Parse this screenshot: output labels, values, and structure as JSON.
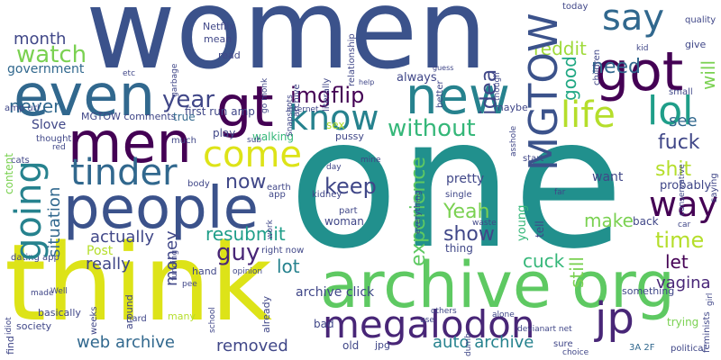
{
  "words": [
    {
      "text": "women",
      "color": "#3b528b"
    },
    {
      "text": "one",
      "color": "#21908d"
    },
    {
      "text": "think",
      "color": "#dde318"
    },
    {
      "text": "archive org",
      "color": "#5ec962"
    },
    {
      "text": "got",
      "color": "#440154"
    },
    {
      "text": "even",
      "color": "#31688e"
    },
    {
      "text": "new",
      "color": "#26828e"
    },
    {
      "text": "men",
      "color": "#440154"
    },
    {
      "text": "people",
      "color": "#3b528b"
    },
    {
      "text": "gt",
      "color": "#440154"
    },
    {
      "text": "megalodon",
      "color": "#482677"
    },
    {
      "text": "jp",
      "color": "#482677"
    },
    {
      "text": "tinder",
      "color": "#31688e"
    },
    {
      "text": "know",
      "color": "#26828e"
    },
    {
      "text": "lol",
      "color": "#1f9e89"
    },
    {
      "text": "life",
      "color": "#b5de2b"
    },
    {
      "text": "say",
      "color": "#31688e"
    },
    {
      "text": "MGTOW",
      "color": "#3b528b"
    },
    {
      "text": "going",
      "color": "#26828e"
    },
    {
      "text": "come",
      "color": "#dde318"
    },
    {
      "text": "way",
      "color": "#440154"
    },
    {
      "text": "fuck",
      "color": "#404788"
    },
    {
      "text": "shit",
      "color": "#b5de2b"
    },
    {
      "text": "time",
      "color": "#b5de2b"
    },
    {
      "text": "watch",
      "color": "#7ad151"
    },
    {
      "text": "imgflip",
      "color": "#440154"
    },
    {
      "text": "idea",
      "color": "#404788"
    },
    {
      "text": "without",
      "color": "#35b779"
    },
    {
      "text": "experience",
      "color": "#5ec962"
    },
    {
      "text": "keep",
      "color": "#404788"
    },
    {
      "text": "Yeah",
      "color": "#7ad151"
    },
    {
      "text": "show",
      "color": "#404788"
    },
    {
      "text": "guy",
      "color": "#482677"
    },
    {
      "text": "resubmit",
      "color": "#1f9e89"
    },
    {
      "text": "now",
      "color": "#404788"
    },
    {
      "text": "year",
      "color": "#404788"
    },
    {
      "text": "need",
      "color": "#31688e"
    },
    {
      "text": "good",
      "color": "#22a884"
    },
    {
      "text": "reddit",
      "color": "#9fda3a"
    },
    {
      "text": "never",
      "color": "#31688e"
    },
    {
      "text": "month",
      "color": "#404788"
    },
    {
      "text": "web archive",
      "color": "#31688e"
    },
    {
      "text": "auto archive",
      "color": "#26828e"
    },
    {
      "text": "removed",
      "color": "#404788"
    },
    {
      "text": "actually",
      "color": "#404788"
    },
    {
      "text": "really",
      "color": "#404788"
    },
    {
      "text": "lot",
      "color": "#26828e"
    },
    {
      "text": "cuck",
      "color": "#35b779"
    },
    {
      "text": "make",
      "color": "#7ad151"
    },
    {
      "text": "let",
      "color": "#440154"
    },
    {
      "text": "vagina",
      "color": "#482677"
    },
    {
      "text": "situation",
      "color": "#31688e"
    },
    {
      "text": "money",
      "color": "#404788"
    },
    {
      "text": "still",
      "color": "#7ad151"
    },
    {
      "text": "will",
      "color": "#7ad151"
    },
    {
      "text": "see",
      "color": "#31688e"
    },
    {
      "text": "probably",
      "color": "#404788"
    },
    {
      "text": "archive click",
      "color": "#404788"
    },
    {
      "text": "pretty",
      "color": "#404788"
    },
    {
      "text": "want",
      "color": "#404788"
    },
    {
      "text": "Slove",
      "color": "#404788"
    },
    {
      "text": "MGTOW comments",
      "color": "#404788"
    },
    {
      "text": "first run amp",
      "color": "#404788"
    },
    {
      "text": "government",
      "color": "#31688e"
    },
    {
      "text": "always",
      "color": "#404788"
    },
    {
      "text": "Netflix",
      "color": "#404788"
    },
    {
      "text": "mean",
      "color": "#404788"
    },
    {
      "text": "read",
      "color": "#404788"
    },
    {
      "text": "true",
      "color": "#31688e"
    },
    {
      "text": "play",
      "color": "#404788"
    },
    {
      "text": "walking",
      "color": "#35b779"
    },
    {
      "text": "sex",
      "color": "#b5de2b"
    },
    {
      "text": "pussy",
      "color": "#404788"
    },
    {
      "text": "woman",
      "color": "#404788"
    },
    {
      "text": "Post",
      "color": "#b5de2b"
    },
    {
      "text": "hand",
      "color": "#404788"
    },
    {
      "text": "thing",
      "color": "#404788"
    },
    {
      "text": "tell",
      "color": "#404788"
    },
    {
      "text": "young",
      "color": "#35b779"
    },
    {
      "text": "back",
      "color": "#404788"
    },
    {
      "text": "give",
      "color": "#404788"
    },
    {
      "text": "quality",
      "color": "#404788"
    },
    {
      "text": "today",
      "color": "#404788"
    },
    {
      "text": "maybe",
      "color": "#404788"
    },
    {
      "text": "start",
      "color": "#404788"
    },
    {
      "text": "something",
      "color": "#404788"
    },
    {
      "text": "trying",
      "color": "#7ad151"
    },
    {
      "text": "political",
      "color": "#404788"
    },
    {
      "text": "feminists",
      "color": "#404788"
    },
    {
      "text": "small",
      "color": "#404788"
    },
    {
      "text": "saying",
      "color": "#404788"
    },
    {
      "text": "children",
      "color": "#404788"
    },
    {
      "text": "conservative",
      "color": "#404788"
    },
    {
      "text": "girl",
      "color": "#404788"
    },
    {
      "text": "3A 2F",
      "color": "#31688e"
    },
    {
      "text": "sure",
      "color": "#404788"
    },
    {
      "text": "choice",
      "color": "#404788"
    },
    {
      "text": "old",
      "color": "#404788"
    },
    {
      "text": "jpg",
      "color": "#404788"
    },
    {
      "text": "bad",
      "color": "#404788"
    },
    {
      "text": "many",
      "color": "#b5de2b"
    },
    {
      "text": "already",
      "color": "#404788"
    },
    {
      "text": "hard",
      "color": "#404788"
    },
    {
      "text": "around",
      "color": "#404788"
    },
    {
      "text": "weeks",
      "color": "#404788"
    },
    {
      "text": "find",
      "color": "#404788"
    },
    {
      "text": "basically",
      "color": "#404788"
    },
    {
      "text": "society",
      "color": "#404788"
    },
    {
      "text": "idiot",
      "color": "#404788"
    },
    {
      "text": "made",
      "color": "#404788"
    },
    {
      "text": "Well",
      "color": "#404788"
    },
    {
      "text": "dating app",
      "color": "#7ad151"
    },
    {
      "text": "content",
      "color": "#404788"
    },
    {
      "text": "thought",
      "color": "#404788"
    },
    {
      "text": "amp url",
      "color": "#404788"
    },
    {
      "text": "go monk",
      "color": "#404788"
    },
    {
      "text": "literally",
      "color": "#404788"
    },
    {
      "text": "archive",
      "color": "#404788"
    },
    {
      "text": "relationship",
      "color": "#404788"
    },
    {
      "text": "though",
      "color": "#404788"
    },
    {
      "text": "better",
      "color": "#404788"
    },
    {
      "text": "right now",
      "color": "#404788"
    },
    {
      "text": "school",
      "color": "#404788"
    },
    {
      "text": "others",
      "color": "#404788"
    },
    {
      "text": "use",
      "color": "#404788"
    },
    {
      "text": "dumb",
      "color": "#404788"
    },
    {
      "text": "devianart net",
      "color": "#404788"
    },
    {
      "text": "cats",
      "color": "#404788"
    },
    {
      "text": "red",
      "color": "#404788"
    },
    {
      "text": "etc",
      "color": "#404788"
    },
    {
      "text": "garbage",
      "color": "#404788"
    },
    {
      "text": "much",
      "color": "#404788"
    },
    {
      "text": "body",
      "color": "#404788"
    },
    {
      "text": "earth",
      "color": "#404788"
    },
    {
      "text": "work",
      "color": "#404788"
    },
    {
      "text": "app",
      "color": "#404788"
    },
    {
      "text": "day",
      "color": "#404788"
    },
    {
      "text": "kidney",
      "color": "#404788"
    },
    {
      "text": "part",
      "color": "#404788"
    },
    {
      "text": "single",
      "color": "#404788"
    },
    {
      "text": "waste",
      "color": "#404788"
    },
    {
      "text": "everything",
      "color": "#404788"
    },
    {
      "text": "funding",
      "color": "#404788"
    },
    {
      "text": "pee",
      "color": "#404788"
    },
    {
      "text": "alone",
      "color": "#404788"
    },
    {
      "text": "mine",
      "color": "#404788"
    },
    {
      "text": "Snapshots",
      "color": "#404788"
    },
    {
      "text": "internet",
      "color": "#404788"
    },
    {
      "text": "help",
      "color": "#404788"
    },
    {
      "text": "kid",
      "color": "#404788"
    },
    {
      "text": "asshole",
      "color": "#404788"
    },
    {
      "text": "far",
      "color": "#404788"
    },
    {
      "text": "car",
      "color": "#404788"
    },
    {
      "text": "sub",
      "color": "#404788"
    },
    {
      "text": "opinion",
      "color": "#404788"
    },
    {
      "text": "guess",
      "color": "#404788"
    }
  ]
}
